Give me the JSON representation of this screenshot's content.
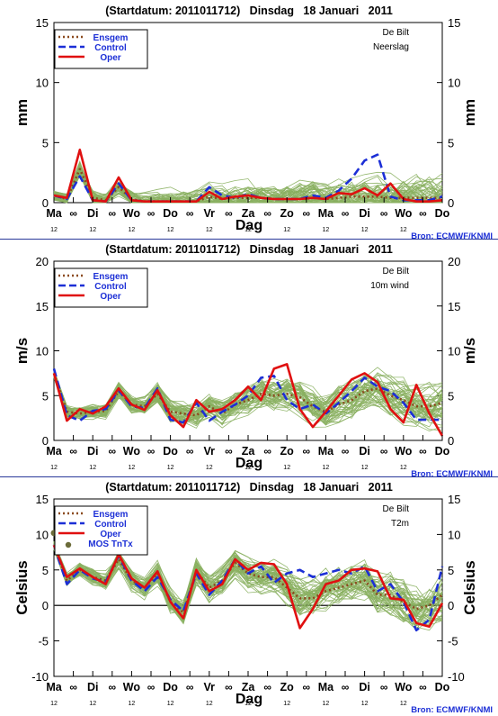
{
  "chart_data": [
    {
      "type": "line",
      "header": "(Startdatum: 2011011712)   Dinsdag   18 Januari   2011",
      "station": "De Bilt",
      "variable": "Neerslag",
      "ylabel": "mm",
      "xlabel": "Dag",
      "source": "Bron: ECMWF/KNMI",
      "ylim": [
        0,
        15
      ],
      "yticks": [
        "0",
        "5",
        "10",
        "15"
      ],
      "zero_line": false,
      "x_tick_labels": [
        "Ma",
        "∞",
        "Di",
        "∞",
        "Wo",
        "∞",
        "Do",
        "∞",
        "Vr",
        "∞",
        "Za",
        "∞",
        "Zo",
        "∞",
        "Ma",
        "∞",
        "Di",
        "∞",
        "Wo",
        "∞",
        "Do"
      ],
      "x_hour_labels": [
        "12",
        "12",
        "12",
        "12",
        "12",
        "12",
        "12",
        "12",
        "12",
        "12"
      ],
      "legend": [
        {
          "name": "Ensgem",
          "style": "dotted",
          "color": "#8b4a1e"
        },
        {
          "name": "Control",
          "style": "dashed",
          "color": "#1c2fd6"
        },
        {
          "name": "Oper",
          "style": "solid",
          "color": "#e01010"
        }
      ],
      "series": [
        {
          "name": "Ensgem",
          "values": [
            0.6,
            0.3,
            2.8,
            0.4,
            0.2,
            1.3,
            0.3,
            0.1,
            0.1,
            0.1,
            0.1,
            0.1,
            0.5,
            0.3,
            0.4,
            0.4,
            0.4,
            0.3,
            0.3,
            0.3,
            0.4,
            0.3,
            0.4,
            0.5,
            0.5,
            0.5,
            0.4,
            0.4,
            0.4,
            0.4,
            0.4
          ]
        },
        {
          "name": "Control",
          "values": [
            0.6,
            0.3,
            2.2,
            0.2,
            0.1,
            1.6,
            0.2,
            0.1,
            0.1,
            0.1,
            0.1,
            0.1,
            1.3,
            0.6,
            0.4,
            0.7,
            0.4,
            0.3,
            0.3,
            0.3,
            0.6,
            0.4,
            1.0,
            2.0,
            3.5,
            4.0,
            0.5,
            0.2,
            0.2,
            0.2,
            0.5
          ]
        },
        {
          "name": "Oper",
          "values": [
            0.6,
            0.4,
            4.4,
            0.2,
            0.1,
            2.1,
            0.2,
            0.1,
            0.1,
            0.1,
            0.1,
            0.1,
            0.9,
            0.3,
            0.5,
            0.6,
            0.4,
            0.3,
            0.3,
            0.3,
            0.4,
            0.3,
            0.8,
            0.7,
            1.2,
            0.6,
            1.6,
            0.3,
            0.1,
            0.1,
            0.2
          ]
        }
      ],
      "ensemble": {
        "members": 50,
        "spread": 1.4,
        "clip": [
          0,
          5.6
        ]
      }
    },
    {
      "type": "line",
      "header": "(Startdatum: 2011011712)   Dinsdag   18 Januari   2011",
      "station": "De Bilt",
      "variable": "10m wind",
      "ylabel": "m/s",
      "xlabel": "Dag",
      "source": "Bron: ECMWF/KNMI",
      "ylim": [
        0,
        20
      ],
      "yticks": [
        "0",
        "5",
        "10",
        "15",
        "20"
      ],
      "zero_line": false,
      "x_tick_labels": [
        "Ma",
        "∞",
        "Di",
        "∞",
        "Wo",
        "∞",
        "Do",
        "∞",
        "Vr",
        "∞",
        "Za",
        "∞",
        "Zo",
        "∞",
        "Ma",
        "∞",
        "Di",
        "∞",
        "Wo",
        "∞",
        "Do"
      ],
      "x_hour_labels": [
        "12",
        "12",
        "12",
        "12",
        "12",
        "12",
        "12",
        "12",
        "12",
        "12"
      ],
      "legend": [
        {
          "name": "Ensgem",
          "style": "dotted",
          "color": "#8b4a1e"
        },
        {
          "name": "Control",
          "style": "dashed",
          "color": "#1c2fd6"
        },
        {
          "name": "Oper",
          "style": "solid",
          "color": "#e01010"
        }
      ],
      "series": [
        {
          "name": "Ensgem",
          "values": [
            7.5,
            3.2,
            3.0,
            3.2,
            3.3,
            5.5,
            4.0,
            3.8,
            5.2,
            3.2,
            3.0,
            2.8,
            3.8,
            3.0,
            4.0,
            4.5,
            5.2,
            5.0,
            5.2,
            4.8,
            3.8,
            3.2,
            4.0,
            4.5,
            5.5,
            5.8,
            5.0,
            4.5,
            3.8,
            3.8,
            4.2
          ]
        },
        {
          "name": "Control",
          "values": [
            8.0,
            2.8,
            2.2,
            3.3,
            3.5,
            5.6,
            3.8,
            3.6,
            5.8,
            2.3,
            2.0,
            4.2,
            2.2,
            3.2,
            4.0,
            5.0,
            7.0,
            7.2,
            4.5,
            3.5,
            4.0,
            3.0,
            4.2,
            5.5,
            7.0,
            6.0,
            5.5,
            4.2,
            2.3,
            2.3,
            2.3
          ]
        },
        {
          "name": "Oper",
          "values": [
            7.5,
            2.2,
            3.5,
            3.0,
            3.8,
            5.8,
            4.0,
            3.4,
            5.6,
            2.8,
            1.5,
            4.5,
            3.2,
            3.5,
            4.5,
            6.0,
            4.5,
            8.0,
            8.5,
            3.5,
            1.5,
            3.2,
            5.0,
            6.8,
            7.5,
            6.5,
            3.5,
            2.0,
            6.2,
            3.0,
            0.5
          ]
        }
      ],
      "ensemble": {
        "members": 50,
        "spread": 1.8,
        "clip": [
          1.0,
          10.5
        ]
      }
    },
    {
      "type": "line",
      "header": "(Startdatum: 2011011712)   Dinsdag   18 Januari   2011",
      "station": "De Bilt",
      "variable": "T2m",
      "ylabel": "Celsius",
      "xlabel": "Dag",
      "source": "Bron: ECMWF/KNMI",
      "ylim": [
        -10,
        15
      ],
      "yticks": [
        "-10",
        "-5",
        "0",
        "5",
        "10",
        "15"
      ],
      "zero_line": true,
      "x_tick_labels": [
        "Ma",
        "∞",
        "Di",
        "∞",
        "Wo",
        "∞",
        "Do",
        "∞",
        "Vr",
        "∞",
        "Za",
        "∞",
        "Zo",
        "∞",
        "Ma",
        "∞",
        "Di",
        "∞",
        "Wo",
        "∞",
        "Do"
      ],
      "x_hour_labels": [
        "12",
        "12",
        "12",
        "12",
        "12",
        "12",
        "12",
        "12",
        "12",
        "12"
      ],
      "legend": [
        {
          "name": "Ensgem",
          "style": "dotted",
          "color": "#8b4a1e"
        },
        {
          "name": "Control",
          "style": "dashed",
          "color": "#1c2fd6"
        },
        {
          "name": "Oper",
          "style": "solid",
          "color": "#e01010"
        },
        {
          "name": "MOS TnTx",
          "style": "dot",
          "color": "#6b6b3a"
        }
      ],
      "series": [
        {
          "name": "Ensgem",
          "values": [
            8.5,
            3.5,
            5.0,
            4.0,
            3.5,
            6.5,
            3.5,
            2.5,
            4.5,
            0.5,
            -1.0,
            4.8,
            2.5,
            3.5,
            6.0,
            4.5,
            4.0,
            4.0,
            2.5,
            1.0,
            1.0,
            2.0,
            2.5,
            3.0,
            3.5,
            1.5,
            1.5,
            0.5,
            -0.5,
            0.0,
            1.5
          ]
        },
        {
          "name": "Control",
          "values": [
            8.5,
            3.0,
            5.0,
            3.8,
            3.3,
            7.0,
            3.5,
            2.0,
            4.0,
            0.8,
            -0.8,
            4.5,
            1.5,
            3.5,
            6.5,
            4.5,
            5.5,
            3.2,
            4.5,
            5.0,
            4.0,
            4.5,
            5.0,
            4.5,
            5.5,
            2.0,
            3.0,
            0.5,
            -3.5,
            -2.0,
            5.5
          ]
        },
        {
          "name": "Oper",
          "values": [
            8.5,
            4.0,
            5.2,
            4.0,
            3.0,
            7.2,
            3.8,
            2.5,
            4.8,
            0.5,
            -1.8,
            5.0,
            2.0,
            3.0,
            6.5,
            5.0,
            6.0,
            5.8,
            3.0,
            -3.2,
            -0.5,
            3.0,
            3.5,
            5.0,
            5.2,
            4.8,
            1.0,
            0.8,
            -2.5,
            -3.0,
            0.3
          ]
        }
      ],
      "mos": [
        {
          "x": 0,
          "y": 10.2
        }
      ],
      "ensemble": {
        "members": 50,
        "spread": 2.5,
        "clip": [
          -9.5,
          9.0
        ]
      }
    }
  ]
}
